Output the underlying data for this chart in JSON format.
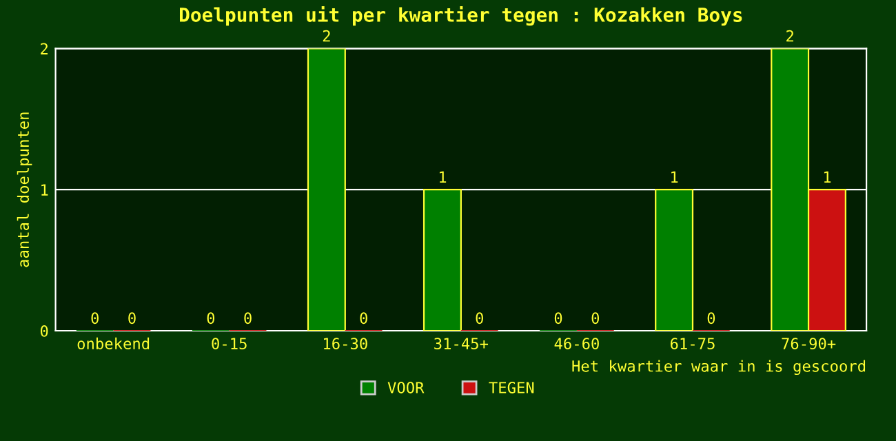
{
  "chart_data": {
    "type": "bar",
    "title": "Doelpunten uit per kwartier tegen : Kozakken Boys",
    "ylabel": "aantal doelpunten",
    "xlabel": "Het kwartier waar in is gescoord",
    "categories": [
      "onbekend",
      "0-15",
      "16-30",
      "31-45+",
      "46-60",
      "61-75",
      "76-90+"
    ],
    "series": [
      {
        "name": "VOOR",
        "color": "#008000",
        "values": [
          0,
          0,
          2,
          1,
          0,
          1,
          2
        ]
      },
      {
        "name": "TEGEN",
        "color": "#cc1111",
        "values": [
          0,
          0,
          0,
          0,
          0,
          0,
          1
        ]
      }
    ],
    "ylim": [
      0,
      2
    ],
    "yticks": [
      0,
      1,
      2
    ],
    "grid": "y",
    "legend": "bottom",
    "data_labels": true
  }
}
